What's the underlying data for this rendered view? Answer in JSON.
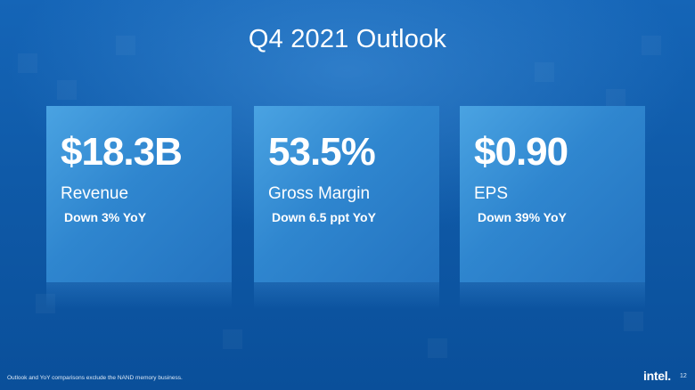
{
  "slide": {
    "title": "Q4 2021 Outlook",
    "footnote": "Outlook and YoY comparisons exclude the NAND memory business.",
    "page_number": "12",
    "logo_text": "intel."
  },
  "cards": [
    {
      "value": "$18.3B",
      "label": "Revenue",
      "change": "Down 3% YoY"
    },
    {
      "value": "53.5%",
      "label": "Gross Margin",
      "change": "Down 6.5 ppt YoY"
    },
    {
      "value": "$0.90",
      "label": "EPS",
      "change": "Down 39% YoY"
    }
  ],
  "colors": {
    "background": "#0f5aa8",
    "card": "#2f86cf",
    "text": "#ffffff"
  }
}
